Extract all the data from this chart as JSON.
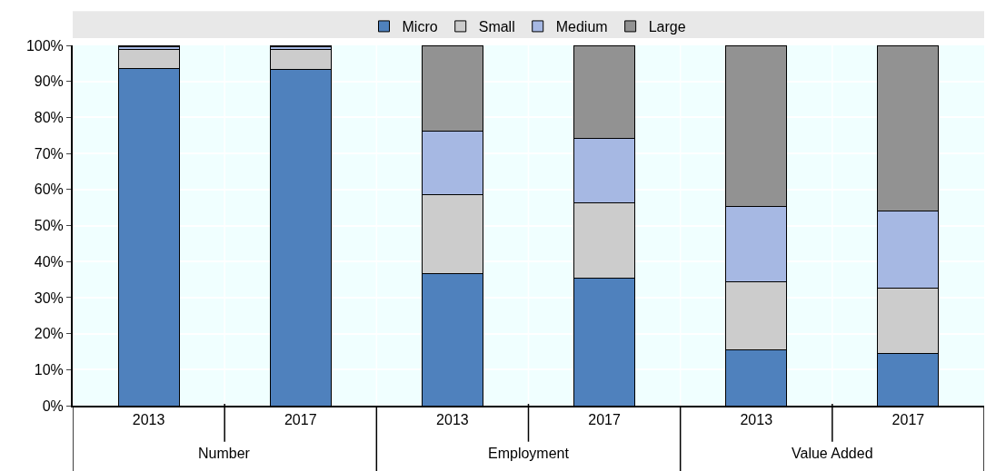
{
  "chart_data": {
    "type": "bar",
    "stacked": true,
    "categories": [
      "2013",
      "2017",
      "2013",
      "2017",
      "2013",
      "2017"
    ],
    "series": [
      {
        "name": "Micro",
        "color": "#4f81bd",
        "values": [
          93.7,
          93.4,
          36.7,
          35.3,
          15.5,
          14.5
        ]
      },
      {
        "name": "Small",
        "color": "#cccccc",
        "values": [
          5.2,
          5.5,
          21.9,
          21.1,
          19.0,
          18.1
        ]
      },
      {
        "name": "Medium",
        "color": "#a6b8e3",
        "values": [
          0.7,
          0.7,
          17.5,
          17.8,
          20.9,
          21.5
        ]
      },
      {
        "name": "Large",
        "color": "#929292",
        "values": [
          0.4,
          0.4,
          23.9,
          25.8,
          44.6,
          45.9
        ]
      }
    ],
    "annotations": [
      "Number",
      "Employment",
      "Value Added"
    ],
    "ylim": [
      0,
      100
    ],
    "yticks": [
      {
        "value": 0,
        "label": "0%"
      },
      {
        "value": 10,
        "label": "10%"
      },
      {
        "value": 20,
        "label": "20%"
      },
      {
        "value": 30,
        "label": "30%"
      },
      {
        "value": 40,
        "label": "40%"
      },
      {
        "value": 50,
        "label": "50%"
      },
      {
        "value": 60,
        "label": "60%"
      },
      {
        "value": 70,
        "label": "70%"
      },
      {
        "value": 80,
        "label": "80%"
      },
      {
        "value": 90,
        "label": "90%"
      },
      {
        "value": 100,
        "label": "100%"
      }
    ],
    "grid": true,
    "legend": "top"
  }
}
